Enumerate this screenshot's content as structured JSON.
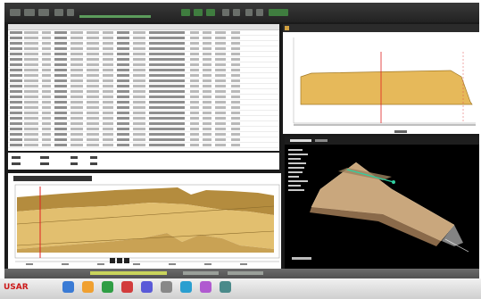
{
  "app": {
    "window_title": "",
    "colors": {
      "profile_fill": "#e6b95a",
      "long_fill": "#e2bf6f",
      "long_dark": "#b48c3e",
      "cursor_red": "#e02020",
      "surface": "#c9a77d",
      "viewer_bg": "#000000"
    }
  },
  "table": {
    "headers": [],
    "rows": []
  },
  "profile_plot": {
    "title": "",
    "icon": "chart-icon"
  },
  "long_section": {
    "title": "",
    "region_labels": [
      "",
      ""
    ],
    "icons": [
      "play-icon",
      "pause-icon",
      "stop-icon"
    ]
  },
  "viewer_3d": {
    "title": ""
  },
  "taskbar": {
    "brand": "USAR",
    "icons": [
      "browser-icon",
      "explorer-icon",
      "media-icon",
      "mail-icon",
      "calendar-icon",
      "settings-icon",
      "search-icon",
      "print-icon",
      "camera-icon"
    ]
  }
}
